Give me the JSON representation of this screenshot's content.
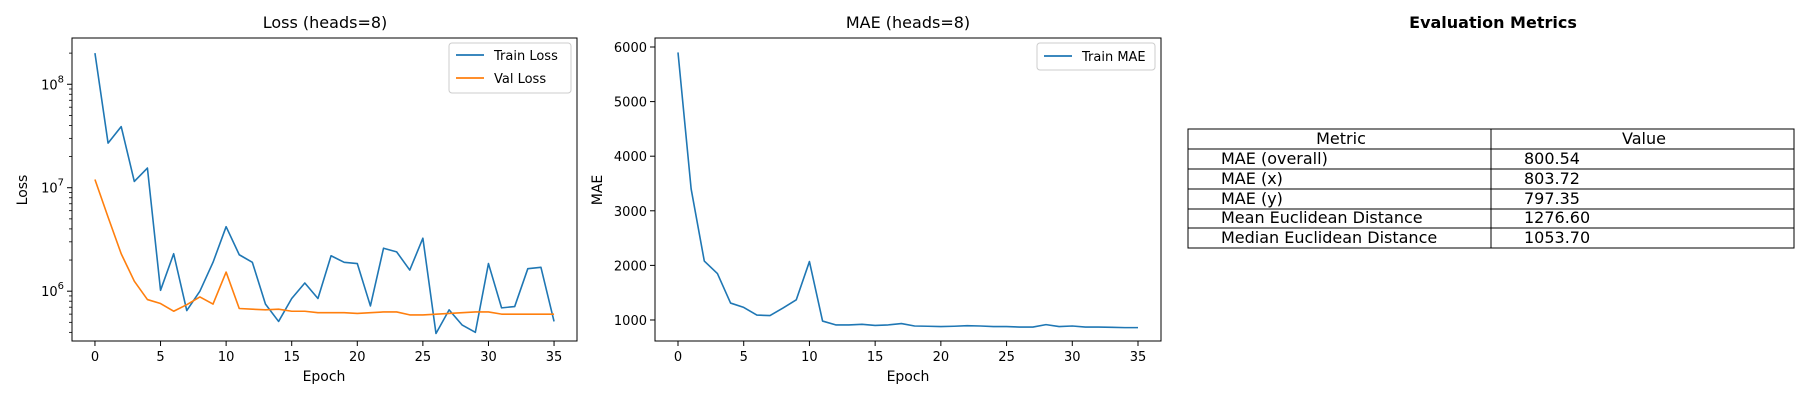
{
  "chart_data": [
    {
      "type": "line",
      "title": "Loss (heads=8)",
      "xlabel": "Epoch",
      "ylabel": "Loss",
      "yscale": "log",
      "xlim": [
        -1.75,
        36.75
      ],
      "ylim": [
        330000,
        280000000
      ],
      "xticks": [
        0,
        5,
        10,
        15,
        20,
        25,
        30,
        35
      ],
      "yticks": [
        {
          "value": 1000000,
          "base": "10",
          "exp": "6"
        },
        {
          "value": 10000000,
          "base": "10",
          "exp": "7"
        },
        {
          "value": 100000000,
          "base": "10",
          "exp": "8"
        }
      ],
      "legend_position": "top-right",
      "grid": false,
      "x": [
        0,
        1,
        2,
        3,
        4,
        5,
        6,
        7,
        8,
        9,
        10,
        11,
        12,
        13,
        14,
        15,
        16,
        17,
        18,
        19,
        20,
        21,
        22,
        23,
        24,
        25,
        26,
        27,
        28,
        29,
        30,
        31,
        32,
        33,
        34,
        35
      ],
      "series": [
        {
          "name": "Train Loss",
          "color": "#1f77b4",
          "values": [
            200000000,
            27000000,
            39000000,
            11500000,
            15500000,
            1020000,
            2300000,
            650000,
            1000000,
            1900000,
            4200000,
            2250000,
            1900000,
            750000,
            510000,
            850000,
            1200000,
            850000,
            2200000,
            1900000,
            1850000,
            720000,
            2600000,
            2400000,
            1600000,
            3250000,
            390000,
            660000,
            470000,
            400000,
            1850000,
            690000,
            710000,
            1650000,
            1700000,
            510000
          ]
        },
        {
          "name": "Val Loss",
          "color": "#ff7f0e",
          "values": [
            12000000,
            5200000,
            2300000,
            1250000,
            830000,
            760000,
            640000,
            740000,
            880000,
            750000,
            1530000,
            680000,
            670000,
            660000,
            670000,
            640000,
            640000,
            620000,
            620000,
            620000,
            610000,
            620000,
            630000,
            630000,
            590000,
            590000,
            600000,
            610000,
            620000,
            630000,
            630000,
            600000,
            600000,
            600000,
            600000,
            600000
          ]
        }
      ]
    },
    {
      "type": "line",
      "title": "MAE (heads=8)",
      "xlabel": "Epoch",
      "ylabel": "MAE",
      "xlim": [
        -1.75,
        36.75
      ],
      "ylim": [
        615,
        6165
      ],
      "xticks": [
        0,
        5,
        10,
        15,
        20,
        25,
        30,
        35
      ],
      "yticks": [
        1000,
        2000,
        3000,
        4000,
        5000,
        6000
      ],
      "legend_position": "top-right",
      "grid": false,
      "x": [
        0,
        1,
        2,
        3,
        4,
        5,
        6,
        7,
        8,
        9,
        10,
        11,
        12,
        13,
        14,
        15,
        16,
        17,
        18,
        19,
        20,
        21,
        22,
        23,
        24,
        25,
        26,
        27,
        28,
        29,
        30,
        31,
        32,
        33,
        34,
        35
      ],
      "series": [
        {
          "name": "Train MAE",
          "color": "#1f77b4",
          "values": [
            5900,
            3400,
            2080,
            1850,
            1310,
            1230,
            1090,
            1080,
            1220,
            1370,
            2070,
            980,
            910,
            910,
            920,
            900,
            910,
            935,
            890,
            885,
            880,
            885,
            895,
            890,
            880,
            880,
            870,
            870,
            915,
            880,
            890,
            870,
            870,
            865,
            860,
            860
          ]
        }
      ]
    },
    {
      "type": "table",
      "title": "Evaluation Metrics",
      "columns": [
        "Metric",
        "Value"
      ],
      "rows": [
        [
          "MAE (overall)",
          "800.54"
        ],
        [
          "MAE (x)",
          "803.72"
        ],
        [
          "MAE (y)",
          "797.35"
        ],
        [
          "Mean Euclidean Distance",
          "1276.60"
        ],
        [
          "Median Euclidean Distance",
          "1053.70"
        ]
      ]
    }
  ]
}
